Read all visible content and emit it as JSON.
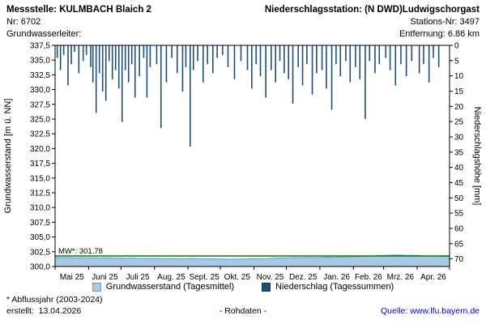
{
  "header": {
    "left": {
      "title": "Messstelle: KULMBACH Blaich 2",
      "number": "Nr: 6702",
      "aquifer": "Grundwasserleiter:"
    },
    "right": {
      "title": "Niederschlagsstation: (N DWD)Ludwigschorgast",
      "station_no": "Stations-Nr: 3497",
      "distance": "Entfernung: 6.86 km"
    }
  },
  "legend": [
    {
      "label": "Grundwasserstand (Tagesmittel)",
      "color": "#a8c9e6"
    },
    {
      "label": "Niederschlag (Tagessummen)",
      "color": "#1f4e79"
    }
  ],
  "footer": {
    "note": "* Abflussjahr (2003-2024)",
    "created": "erstellt:  13.04.2026",
    "center": "- Rohdaten -",
    "source": "Quelle: www.lfu.bayern.de",
    "source_color": "#0000cc"
  },
  "chart_data": {
    "type": "line+bar",
    "title": "",
    "x_axis": {
      "tick_labels": [
        "Mai 25",
        "Juni 25",
        "Juli 25",
        "Aug. 25",
        "Sept. 25",
        "Okt. 25",
        "Nov. 25",
        "Dez. 25",
        "Jan. 26",
        "Feb. 26",
        "Mrz. 26",
        "Apr. 26"
      ],
      "month_start_days": [
        0,
        31,
        61,
        92,
        123,
        153,
        184,
        214,
        245,
        276,
        304,
        335,
        365
      ],
      "days_total": 365
    },
    "left_axis": {
      "label": "Grundwasserstand [m ü. NN]",
      "min": 300.0,
      "max": 337.5,
      "step": 2.5,
      "tick_labels": [
        "337,5",
        "335,0",
        "332,5",
        "330,0",
        "327,5",
        "325,0",
        "322,5",
        "320,0",
        "317,5",
        "315,0",
        "312,5",
        "310,0",
        "307,5",
        "305,0",
        "302,5",
        "300,0"
      ]
    },
    "right_axis": {
      "label": "Niederschlagshöhe [mm]",
      "min": 0,
      "max": 70,
      "step": 5,
      "inverted_from_top": true,
      "tick_labels": [
        "0",
        "5",
        "10",
        "15",
        "20",
        "25",
        "30",
        "35",
        "40",
        "45",
        "50",
        "55",
        "60",
        "65",
        "70"
      ]
    },
    "reference_line": {
      "label": "MW*: 301.78",
      "value": 301.78,
      "color": "#008000"
    },
    "series": [
      {
        "name": "Grundwasserstand (Tagesmittel)",
        "type": "area",
        "axis": "left",
        "fill": "#a8c9e6",
        "stroke": "#5b9bd5",
        "points": [
          [
            0,
            301.55
          ],
          [
            6,
            301.5
          ],
          [
            12,
            301.52
          ],
          [
            18,
            301.46
          ],
          [
            24,
            301.5
          ],
          [
            30,
            301.45
          ],
          [
            36,
            301.48
          ],
          [
            42,
            301.42
          ],
          [
            48,
            301.46
          ],
          [
            54,
            301.4
          ],
          [
            60,
            301.42
          ],
          [
            66,
            301.38
          ],
          [
            72,
            301.42
          ],
          [
            78,
            301.36
          ],
          [
            84,
            301.38
          ],
          [
            90,
            301.33
          ],
          [
            96,
            301.36
          ],
          [
            102,
            301.3
          ],
          [
            108,
            301.34
          ],
          [
            114,
            301.3
          ],
          [
            120,
            301.32
          ],
          [
            126,
            301.36
          ],
          [
            132,
            301.3
          ],
          [
            138,
            301.28
          ],
          [
            144,
            301.3
          ],
          [
            150,
            301.26
          ],
          [
            156,
            301.28
          ],
          [
            162,
            301.24
          ],
          [
            168,
            301.26
          ],
          [
            174,
            301.28
          ],
          [
            180,
            301.3
          ],
          [
            186,
            301.34
          ],
          [
            192,
            301.3
          ],
          [
            198,
            301.36
          ],
          [
            204,
            301.4
          ],
          [
            210,
            301.44
          ],
          [
            216,
            301.48
          ],
          [
            222,
            301.52
          ],
          [
            228,
            301.48
          ],
          [
            234,
            301.52
          ],
          [
            240,
            301.5
          ],
          [
            246,
            301.54
          ],
          [
            252,
            301.58
          ],
          [
            258,
            301.55
          ],
          [
            264,
            301.6
          ],
          [
            270,
            301.64
          ],
          [
            276,
            301.68
          ],
          [
            282,
            301.72
          ],
          [
            288,
            301.76
          ],
          [
            294,
            301.8
          ],
          [
            300,
            301.85
          ],
          [
            306,
            301.88
          ],
          [
            312,
            301.92
          ],
          [
            318,
            301.95
          ],
          [
            324,
            301.9
          ],
          [
            330,
            301.88
          ],
          [
            336,
            301.84
          ],
          [
            342,
            301.8
          ],
          [
            348,
            301.78
          ],
          [
            354,
            301.75
          ],
          [
            360,
            301.72
          ],
          [
            365,
            301.72
          ]
        ]
      },
      {
        "name": "Niederschlag (Tagessummen)",
        "type": "bar",
        "axis": "right",
        "color": "#1f4e79",
        "points": [
          [
            2,
            4
          ],
          [
            5,
            8
          ],
          [
            8,
            3
          ],
          [
            12,
            13
          ],
          [
            15,
            6
          ],
          [
            18,
            2
          ],
          [
            22,
            9
          ],
          [
            26,
            5
          ],
          [
            29,
            3
          ],
          [
            33,
            7
          ],
          [
            35,
            12
          ],
          [
            38,
            22
          ],
          [
            41,
            9
          ],
          [
            44,
            15
          ],
          [
            47,
            18
          ],
          [
            50,
            5
          ],
          [
            53,
            11
          ],
          [
            56,
            8
          ],
          [
            59,
            14
          ],
          [
            62,
            25
          ],
          [
            65,
            8
          ],
          [
            68,
            12
          ],
          [
            71,
            6
          ],
          [
            74,
            17
          ],
          [
            78,
            10
          ],
          [
            82,
            4
          ],
          [
            85,
            17
          ],
          [
            88,
            7
          ],
          [
            94,
            6
          ],
          [
            98,
            27
          ],
          [
            103,
            12
          ],
          [
            108,
            4
          ],
          [
            113,
            9
          ],
          [
            118,
            15
          ],
          [
            121,
            7
          ],
          [
            125,
            33
          ],
          [
            128,
            8
          ],
          [
            132,
            5
          ],
          [
            137,
            12
          ],
          [
            141,
            6
          ],
          [
            146,
            9
          ],
          [
            150,
            4
          ],
          [
            155,
            3
          ],
          [
            160,
            7
          ],
          [
            166,
            11
          ],
          [
            172,
            5
          ],
          [
            178,
            8
          ],
          [
            182,
            14
          ],
          [
            186,
            6
          ],
          [
            190,
            10
          ],
          [
            195,
            17
          ],
          [
            200,
            8
          ],
          [
            204,
            12
          ],
          [
            208,
            5
          ],
          [
            212,
            9
          ],
          [
            216,
            11
          ],
          [
            220,
            19
          ],
          [
            225,
            7
          ],
          [
            229,
            13
          ],
          [
            233,
            6
          ],
          [
            238,
            16
          ],
          [
            242,
            9
          ],
          [
            247,
            8
          ],
          [
            251,
            14
          ],
          [
            256,
            21
          ],
          [
            260,
            6
          ],
          [
            264,
            10
          ],
          [
            269,
            5
          ],
          [
            273,
            12
          ],
          [
            278,
            7
          ],
          [
            282,
            11
          ],
          [
            287,
            24
          ],
          [
            291,
            5
          ],
          [
            296,
            9
          ],
          [
            300,
            6
          ],
          [
            306,
            4
          ],
          [
            310,
            8
          ],
          [
            315,
            13
          ],
          [
            320,
            6
          ],
          [
            325,
            10
          ],
          [
            330,
            5
          ],
          [
            337,
            9
          ],
          [
            341,
            6
          ],
          [
            346,
            12
          ],
          [
            350,
            4
          ],
          [
            355,
            7
          ]
        ]
      }
    ]
  }
}
